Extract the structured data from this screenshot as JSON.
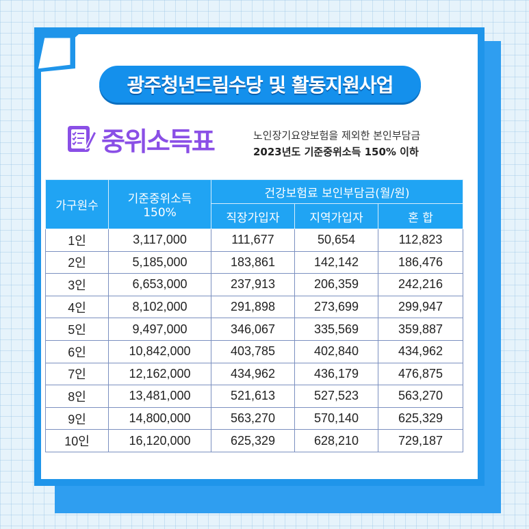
{
  "title": "광주청년드림수당 및 활동지원사업",
  "section_title": "중위소득표",
  "notes": {
    "line1": "노인장기요양보험을 제외한 본인부담금",
    "line2": "2023년도 기준중위소득 150% 이하"
  },
  "colors": {
    "primary_blue": "#1490ec",
    "header_blue": "#20a4f3",
    "section_purple": "#8a4fe6"
  },
  "table": {
    "headers": {
      "household": "가구원수",
      "median_income_line1": "기준중위소득",
      "median_income_line2": "150%",
      "premium_group": "건강보험료 보인부담금(월/원)",
      "employee": "직장가입자",
      "regional": "지역가입자",
      "mixed": "혼 합"
    },
    "rows": [
      [
        "1인",
        "3,117,000",
        "111,677",
        "50,654",
        "112,823"
      ],
      [
        "2인",
        "5,185,000",
        "183,861",
        "142,142",
        "186,476"
      ],
      [
        "3인",
        "6,653,000",
        "237,913",
        "206,359",
        "242,216"
      ],
      [
        "4인",
        "8,102,000",
        "291,898",
        "273,699",
        "299,947"
      ],
      [
        "5인",
        "9,497,000",
        "346,067",
        "335,569",
        "359,887"
      ],
      [
        "6인",
        "10,842,000",
        "403,785",
        "402,840",
        "434,962"
      ],
      [
        "7인",
        "12,162,000",
        "434,962",
        "436,179",
        "476,875"
      ],
      [
        "8인",
        "13,481,000",
        "521,613",
        "527,523",
        "563,270"
      ],
      [
        "9인",
        "14,800,000",
        "563,270",
        "570,140",
        "625,329"
      ],
      [
        "10인",
        "16,120,000",
        "625,329",
        "628,210",
        "729,187"
      ]
    ]
  }
}
